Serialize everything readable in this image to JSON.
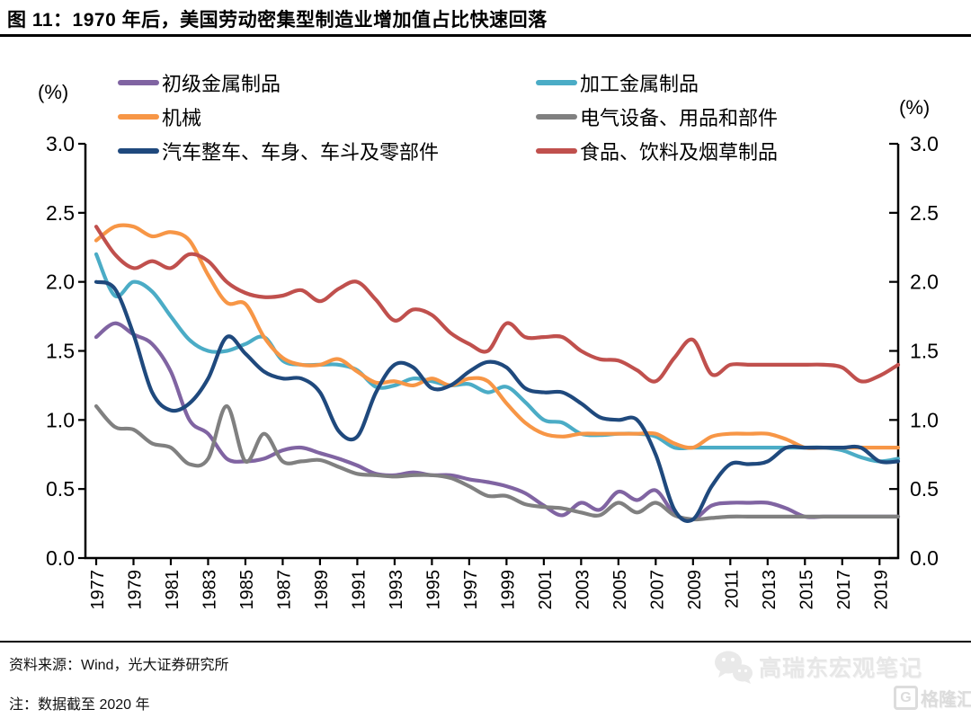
{
  "title": "图 11：1970 年后，美国劳动密集型制造业增加值占比快速回落",
  "footer": {
    "source": "资料来源：Wind，光大证券研究所",
    "note": "注：数据截至 2020 年"
  },
  "watermark": {
    "wechat_account": "高瑞东宏观笔记",
    "site_logo": "格隆汇"
  },
  "chart_data": {
    "type": "line",
    "title": "",
    "xlabel": "",
    "ylabel": "(%)",
    "ylim": [
      0,
      3
    ],
    "y_ticks": [
      "0.0",
      "0.5",
      "1.0",
      "1.5",
      "2.0",
      "2.5",
      "3.0"
    ],
    "grid": false,
    "legend_position": "top",
    "x": [
      1977,
      1978,
      1979,
      1980,
      1981,
      1982,
      1983,
      1984,
      1985,
      1986,
      1987,
      1988,
      1989,
      1990,
      1991,
      1992,
      1993,
      1994,
      1995,
      1996,
      1997,
      1998,
      1999,
      2000,
      2001,
      2002,
      2003,
      2004,
      2005,
      2006,
      2007,
      2008,
      2009,
      2010,
      2011,
      2012,
      2013,
      2014,
      2015,
      2016,
      2017,
      2018,
      2019,
      2020
    ],
    "x_tick_labels": [
      "1977",
      "1979",
      "1981",
      "1983",
      "1985",
      "1987",
      "1989",
      "1991",
      "1993",
      "1995",
      "1997",
      "1999",
      "2001",
      "2003",
      "2005",
      "2007",
      "2009",
      "2011",
      "2013",
      "2015",
      "2017",
      "2019"
    ],
    "series": [
      {
        "key": "primary-metal-products",
        "name": "初级金属制品",
        "color": "#8064A2",
        "values": [
          1.6,
          1.7,
          1.62,
          1.55,
          1.35,
          1.0,
          0.9,
          0.72,
          0.7,
          0.72,
          0.78,
          0.8,
          0.76,
          0.72,
          0.67,
          0.61,
          0.6,
          0.62,
          0.6,
          0.6,
          0.57,
          0.55,
          0.52,
          0.47,
          0.38,
          0.31,
          0.4,
          0.35,
          0.48,
          0.42,
          0.49,
          0.32,
          0.28,
          0.38,
          0.4,
          0.4,
          0.4,
          0.36,
          0.3,
          0.3,
          0.3,
          0.3,
          0.3,
          0.3
        ]
      },
      {
        "key": "fabricated-metal-products",
        "name": "加工金属制品",
        "color": "#4BACC6",
        "values": [
          2.2,
          1.9,
          2.0,
          1.93,
          1.75,
          1.58,
          1.5,
          1.5,
          1.55,
          1.6,
          1.43,
          1.4,
          1.4,
          1.4,
          1.36,
          1.24,
          1.25,
          1.3,
          1.28,
          1.25,
          1.26,
          1.2,
          1.24,
          1.13,
          1.0,
          0.98,
          0.9,
          0.89,
          0.9,
          0.9,
          0.88,
          0.8,
          0.8,
          0.8,
          0.8,
          0.8,
          0.8,
          0.8,
          0.8,
          0.8,
          0.78,
          0.73,
          0.7,
          0.72
        ]
      },
      {
        "key": "machinery",
        "name": "机械",
        "color": "#F79646",
        "values": [
          2.3,
          2.4,
          2.4,
          2.33,
          2.36,
          2.3,
          2.05,
          1.85,
          1.84,
          1.6,
          1.45,
          1.4,
          1.4,
          1.44,
          1.35,
          1.27,
          1.28,
          1.25,
          1.3,
          1.25,
          1.3,
          1.28,
          1.12,
          0.98,
          0.9,
          0.88,
          0.9,
          0.9,
          0.9,
          0.9,
          0.9,
          0.83,
          0.8,
          0.88,
          0.9,
          0.9,
          0.9,
          0.86,
          0.8,
          0.8,
          0.8,
          0.8,
          0.8,
          0.8
        ]
      },
      {
        "key": "electrical-equipment-appliances-components",
        "name": "电气设备、用品和部件",
        "color": "#808080",
        "values": [
          1.1,
          0.95,
          0.93,
          0.83,
          0.8,
          0.68,
          0.72,
          1.1,
          0.7,
          0.9,
          0.7,
          0.7,
          0.71,
          0.66,
          0.61,
          0.6,
          0.59,
          0.6,
          0.6,
          0.58,
          0.52,
          0.45,
          0.45,
          0.39,
          0.37,
          0.36,
          0.33,
          0.31,
          0.4,
          0.33,
          0.4,
          0.31,
          0.28,
          0.29,
          0.3,
          0.3,
          0.3,
          0.3,
          0.3,
          0.3,
          0.3,
          0.3,
          0.3,
          0.3
        ]
      },
      {
        "key": "motor-vehicles-bodies-trailers-parts",
        "name": "汽车整车、车身、车斗及零部件",
        "color": "#1F497D",
        "values": [
          2.0,
          1.95,
          1.62,
          1.2,
          1.07,
          1.12,
          1.3,
          1.6,
          1.48,
          1.35,
          1.3,
          1.3,
          1.2,
          0.92,
          0.88,
          1.2,
          1.4,
          1.38,
          1.23,
          1.25,
          1.35,
          1.42,
          1.38,
          1.23,
          1.2,
          1.2,
          1.12,
          1.02,
          1.0,
          1.0,
          0.75,
          0.35,
          0.28,
          0.52,
          0.68,
          0.68,
          0.7,
          0.8,
          0.8,
          0.8,
          0.8,
          0.8,
          0.7,
          0.7
        ]
      },
      {
        "key": "food-beverage-tobacco-products",
        "name": "食品、饮料及烟草制品",
        "color": "#C0504D",
        "values": [
          2.4,
          2.2,
          2.1,
          2.15,
          2.1,
          2.2,
          2.15,
          2.0,
          1.92,
          1.89,
          1.9,
          1.94,
          1.86,
          1.95,
          2.0,
          1.87,
          1.72,
          1.8,
          1.76,
          1.63,
          1.55,
          1.5,
          1.7,
          1.6,
          1.6,
          1.6,
          1.5,
          1.44,
          1.43,
          1.36,
          1.28,
          1.45,
          1.58,
          1.33,
          1.4,
          1.4,
          1.4,
          1.4,
          1.4,
          1.4,
          1.38,
          1.28,
          1.32,
          1.4
        ]
      }
    ]
  }
}
